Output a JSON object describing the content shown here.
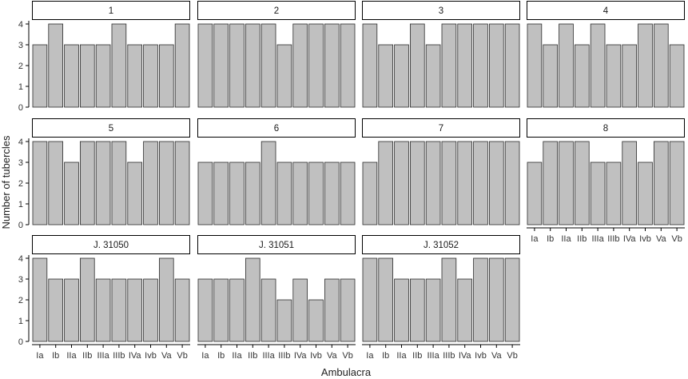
{
  "chart_data": {
    "type": "bar",
    "facets_layout": "3 rows x 4 columns",
    "xlabel": "Ambulacra",
    "ylabel": "Number of tubercles",
    "ylim": [
      0,
      4
    ],
    "yticks": [
      0,
      1,
      2,
      3,
      4
    ],
    "grid": false,
    "legend": "none",
    "categories": [
      "Ia",
      "Ib",
      "IIa",
      "IIb",
      "IIIa",
      "IIIb",
      "IVa",
      "Ivb",
      "Va",
      "Vb"
    ],
    "colors": {
      "bar_fill": "#c0c0c0",
      "bar_stroke": "#2b2b2b",
      "axis": "#000000",
      "strip_fill": "#ffffff"
    },
    "panels": [
      {
        "label": "1",
        "values": [
          3,
          4,
          3,
          3,
          3,
          4,
          3,
          3,
          3,
          4
        ]
      },
      {
        "label": "2",
        "values": [
          4,
          4,
          4,
          4,
          4,
          3,
          4,
          4,
          4,
          4
        ]
      },
      {
        "label": "3",
        "values": [
          4,
          3,
          3,
          4,
          3,
          4,
          4,
          4,
          4,
          4
        ]
      },
      {
        "label": "4",
        "values": [
          4,
          3,
          4,
          3,
          4,
          3,
          3,
          4,
          4,
          3
        ]
      },
      {
        "label": "5",
        "values": [
          4,
          4,
          3,
          4,
          4,
          4,
          3,
          4,
          4,
          4
        ]
      },
      {
        "label": "6",
        "values": [
          3,
          3,
          3,
          3,
          4,
          3,
          3,
          3,
          3,
          3
        ]
      },
      {
        "label": "7",
        "values": [
          3,
          4,
          4,
          4,
          4,
          4,
          4,
          4,
          4,
          4
        ]
      },
      {
        "label": "8",
        "values": [
          3,
          4,
          4,
          4,
          3,
          3,
          4,
          3,
          4,
          4
        ]
      },
      {
        "label": "J. 31050",
        "values": [
          4,
          3,
          3,
          4,
          3,
          3,
          3,
          3,
          4,
          3
        ]
      },
      {
        "label": "J. 31051",
        "values": [
          3,
          3,
          3,
          4,
          3,
          2,
          3,
          2,
          3,
          3
        ]
      },
      {
        "label": "J. 31052",
        "values": [
          4,
          4,
          3,
          3,
          3,
          4,
          3,
          4,
          4,
          4
        ]
      }
    ]
  }
}
